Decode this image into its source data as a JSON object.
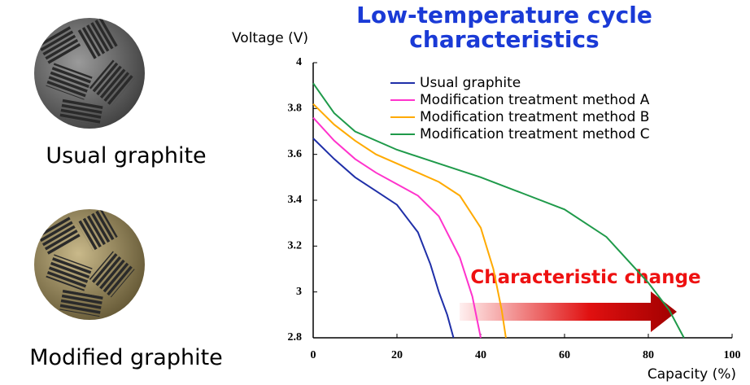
{
  "chart_data": {
    "type": "line",
    "title": "Low-temperature cycle characteristics",
    "y_label": "Voltage (V)",
    "x_label": "Capacity (%)",
    "annotation": "Characteristic change",
    "images": [
      "Usual graphite",
      "Modified graphite"
    ],
    "xlim": [
      0,
      100
    ],
    "xticks": [
      0,
      20,
      40,
      60,
      80,
      100
    ],
    "ylim": [
      2.8,
      4
    ],
    "yticks": [
      2.8,
      3,
      3.2,
      3.4,
      3.6,
      3.8,
      4
    ],
    "legend": "upper right",
    "series": [
      {
        "name": "Usual graphite",
        "color": "#1f2fa8",
        "x": [
          0,
          5,
          10,
          15,
          20,
          25,
          28,
          30,
          32,
          33.5
        ],
        "values": [
          3.67,
          3.58,
          3.5,
          3.44,
          3.38,
          3.26,
          3.12,
          3.0,
          2.9,
          2.8
        ]
      },
      {
        "name": "Modification treatment method A",
        "color": "#ff33cc",
        "x": [
          0,
          5,
          10,
          15,
          20,
          25,
          30,
          35,
          38,
          40
        ],
        "values": [
          3.76,
          3.66,
          3.58,
          3.52,
          3.47,
          3.42,
          3.33,
          3.15,
          2.98,
          2.8
        ]
      },
      {
        "name": "Modification treatment method B",
        "color": "#ffaa00",
        "x": [
          0,
          5,
          10,
          15,
          20,
          25,
          30,
          35,
          40,
          43,
          45,
          46
        ],
        "values": [
          3.82,
          3.73,
          3.66,
          3.6,
          3.56,
          3.52,
          3.48,
          3.42,
          3.28,
          3.1,
          2.92,
          2.8
        ]
      },
      {
        "name": "Modification treatment method C",
        "color": "#1f9a4a",
        "x": [
          0,
          5,
          10,
          20,
          30,
          40,
          50,
          60,
          70,
          80,
          85,
          88.5
        ],
        "values": [
          3.91,
          3.78,
          3.7,
          3.62,
          3.56,
          3.5,
          3.43,
          3.36,
          3.24,
          3.04,
          2.92,
          2.8
        ]
      }
    ]
  }
}
